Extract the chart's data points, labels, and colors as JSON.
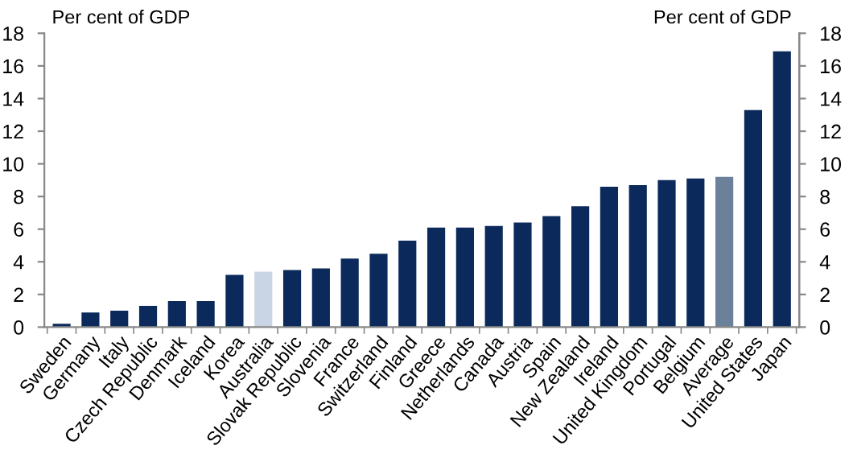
{
  "chart_data": {
    "type": "bar",
    "ylabel": "Per cent of GDP",
    "y2label": "Per cent of GDP",
    "categories": [
      "Sweden",
      "Germany",
      "Italy",
      "Czech Republic",
      "Denmark",
      "Iceland",
      "Korea",
      "Australia",
      "Slovak Republic",
      "Slovenia",
      "France",
      "Switzerland",
      "Finland",
      "Greece",
      "Netherlands",
      "Canada",
      "Austria",
      "Spain",
      "New Zealand",
      "Ireland",
      "United Kingdom",
      "Portugal",
      "Belgium",
      "Average",
      "United States",
      "Japan"
    ],
    "values": [
      0.2,
      0.9,
      1.0,
      1.3,
      1.6,
      1.6,
      3.2,
      3.4,
      3.5,
      3.6,
      4.2,
      4.5,
      5.3,
      6.1,
      6.1,
      6.2,
      6.4,
      6.8,
      7.4,
      8.6,
      8.7,
      9.0,
      9.1,
      9.2,
      13.3,
      16.9
    ],
    "colors": [
      "#0b2a5b",
      "#0b2a5b",
      "#0b2a5b",
      "#0b2a5b",
      "#0b2a5b",
      "#0b2a5b",
      "#0b2a5b",
      "#c9d4e4",
      "#0b2a5b",
      "#0b2a5b",
      "#0b2a5b",
      "#0b2a5b",
      "#0b2a5b",
      "#0b2a5b",
      "#0b2a5b",
      "#0b2a5b",
      "#0b2a5b",
      "#0b2a5b",
      "#0b2a5b",
      "#0b2a5b",
      "#0b2a5b",
      "#0b2a5b",
      "#0b2a5b",
      "#6b8099",
      "#0b2a5b",
      "#0b2a5b"
    ],
    "ylim": [
      0,
      18
    ],
    "yticks": [
      0,
      2,
      4,
      6,
      8,
      10,
      12,
      14,
      16,
      18
    ],
    "y2lim": [
      0,
      18
    ],
    "y2ticks": [
      0,
      2,
      4,
      6,
      8,
      10,
      12,
      14,
      16,
      18
    ],
    "grid": false,
    "legend": false
  }
}
